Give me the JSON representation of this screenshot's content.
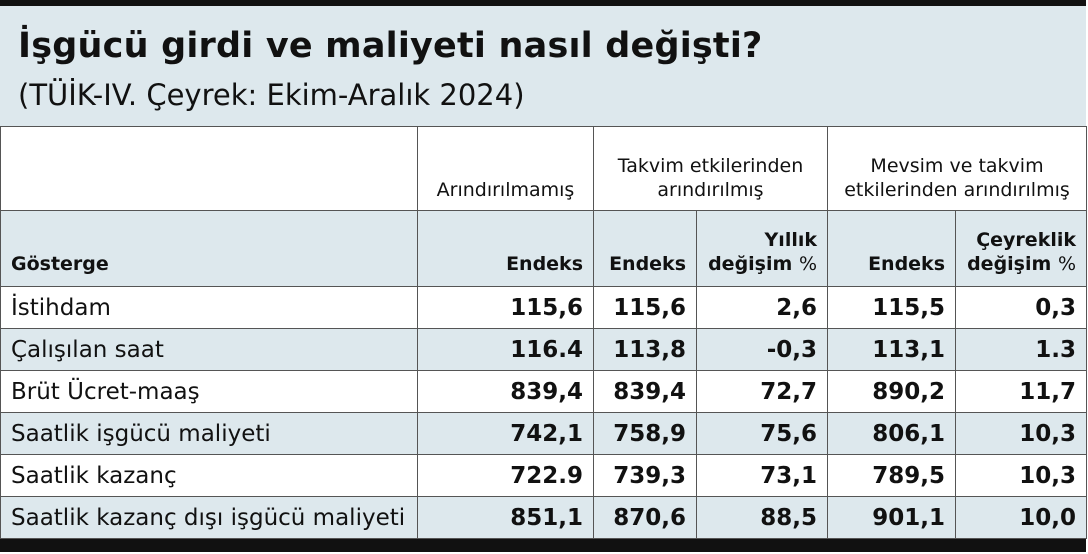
{
  "title": "İşgücü girdi ve maliyeti nasıl değişti?",
  "subtitle": "(TÜİK-IV. Çeyrek: Ekim-Aralık 2024)",
  "table": {
    "group_headers": {
      "unadjusted": "Arındırılmamış",
      "calendar_line1": "Takvim etkilerinden",
      "calendar_line2": "arındırılmış",
      "seasonal_line1": "Mevsim ve takvim",
      "seasonal_line2": "etkilerinden arındırılmış"
    },
    "sub_headers": {
      "indicator": "Gösterge",
      "index": "Endeks",
      "annual_line1": "Yıllık",
      "annual_line2": "değişim",
      "quarterly_line1": "Çeyreklik",
      "quarterly_line2": "değişim",
      "pct": "%"
    },
    "rows": [
      {
        "name": "İstihdam",
        "v1": "115,6",
        "v2": "115,6",
        "v3": "2,6",
        "v4": "115,5",
        "v5": "0,3"
      },
      {
        "name": "Çalışılan saat",
        "v1": "116.4",
        "v2": "113,8",
        "v3": "-0,3",
        "v4": "113,1",
        "v5": "1.3"
      },
      {
        "name": "Brüt Ücret-maaş",
        "v1": "839,4",
        "v2": "839,4",
        "v3": "72,7",
        "v4": "890,2",
        "v5": "11,7"
      },
      {
        "name": "Saatlik işgücü maliyeti",
        "v1": "742,1",
        "v2": "758,9",
        "v3": "75,6",
        "v4": "806,1",
        "v5": "10,3"
      },
      {
        "name": "Saatlik kazanç",
        "v1": "722.9",
        "v2": "739,3",
        "v3": "73,1",
        "v4": "789,5",
        "v5": "10,3"
      },
      {
        "name": "Saatlik kazanç dışı işgücü maliyeti",
        "v1": "851,1",
        "v2": "870,6",
        "v3": "88,5",
        "v4": "901,1",
        "v5": "10,0"
      }
    ]
  },
  "colors": {
    "header_bg": "#dde8ed",
    "row_alt_bg": "#dde8ed",
    "rule": "#111111"
  }
}
